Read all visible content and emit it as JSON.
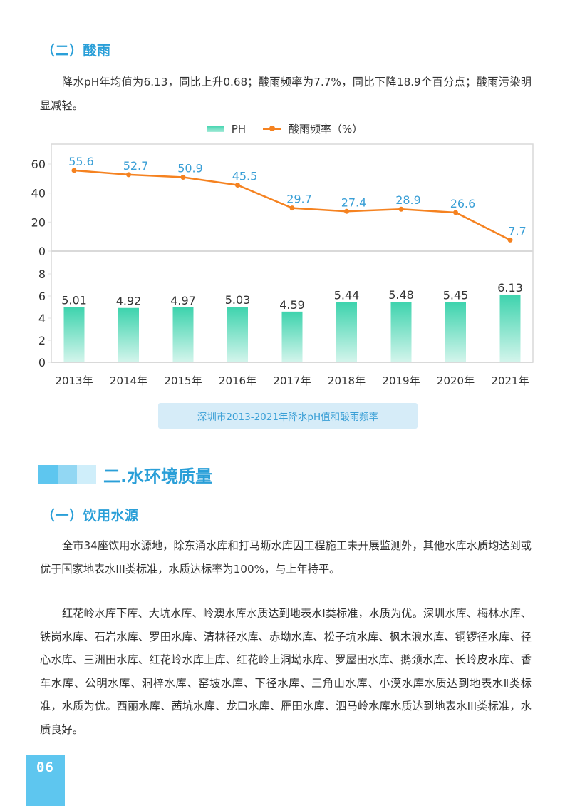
{
  "acid_rain": {
    "heading": "（二）酸雨",
    "paragraph": "降水pH年均值为6.13，同比上升0.68；酸雨频率为7.7%，同比下降18.9个百分点；酸雨污染明显减轻。"
  },
  "chart_data": {
    "type": "bar+line",
    "title": "深圳市2013-2021年降水pH值和酸雨频率",
    "categories": [
      "2013年",
      "2014年",
      "2015年",
      "2016年",
      "2017年",
      "2018年",
      "2019年",
      "2020年",
      "2021年"
    ],
    "legend": {
      "placement": "top-center",
      "entries": [
        "PH",
        "酸雨频率（%）"
      ]
    },
    "series": [
      {
        "name": "酸雨频率（%）",
        "type": "line",
        "panel": "top",
        "values": [
          55.6,
          52.7,
          50.9,
          45.5,
          29.7,
          27.4,
          28.9,
          26.6,
          7.7
        ],
        "color": "#f58220",
        "label_color": "#3a9fd6"
      },
      {
        "name": "PH",
        "type": "bar",
        "panel": "bottom",
        "values": [
          5.01,
          4.92,
          4.97,
          5.03,
          4.59,
          5.44,
          5.48,
          5.45,
          6.13
        ],
        "color": "#3dd3ad",
        "label_color": "#333333"
      }
    ],
    "top_axis": {
      "ylim": [
        0,
        60
      ],
      "ticks": [
        "0",
        "20",
        "40",
        "60"
      ]
    },
    "bottom_axis": {
      "ylim": [
        0,
        8
      ],
      "ticks": [
        "0",
        "2",
        "4",
        "6",
        "8"
      ]
    },
    "grid": false
  },
  "caption": "深圳市2013-2021年降水pH值和酸雨频率",
  "water_section": {
    "title": "二.水环境质量",
    "sub_heading": "（一）饮用水源",
    "paragraph1": "全市34座饮用水源地，除东涌水库和打马坜水库因工程施工未开展监测外，其他水库水质均达到或优于国家地表水III类标准，水质达标率为100%，与上年持平。",
    "paragraph2": "红花岭水库下库、大坑水库、岭澳水库水质达到地表水Ⅰ类标准，水质为优。深圳水库、梅林水库、铁岗水库、石岩水库、罗田水库、清林径水库、赤坳水库、松子坑水库、枫木浪水库、铜锣径水库、径心水库、三洲田水库、红花岭水库上库、红花岭上洞坳水库、罗屋田水库、鹅颈水库、长岭皮水库、香车水库、公明水库、洞梓水库、窑坡水库、下径水库、三角山水库、小漠水库水质达到地表水Ⅱ类标准，水质为优。西丽水库、茜坑水库、龙口水库、雁田水库、泗马岭水库水质达到地表水III类标准，水质良好。"
  },
  "page_number": "06",
  "colors": {
    "accent": "#2a9fd8",
    "line": "#f58220",
    "bar": "#3dd3ad",
    "caption_bg": "#d6ecf8"
  }
}
